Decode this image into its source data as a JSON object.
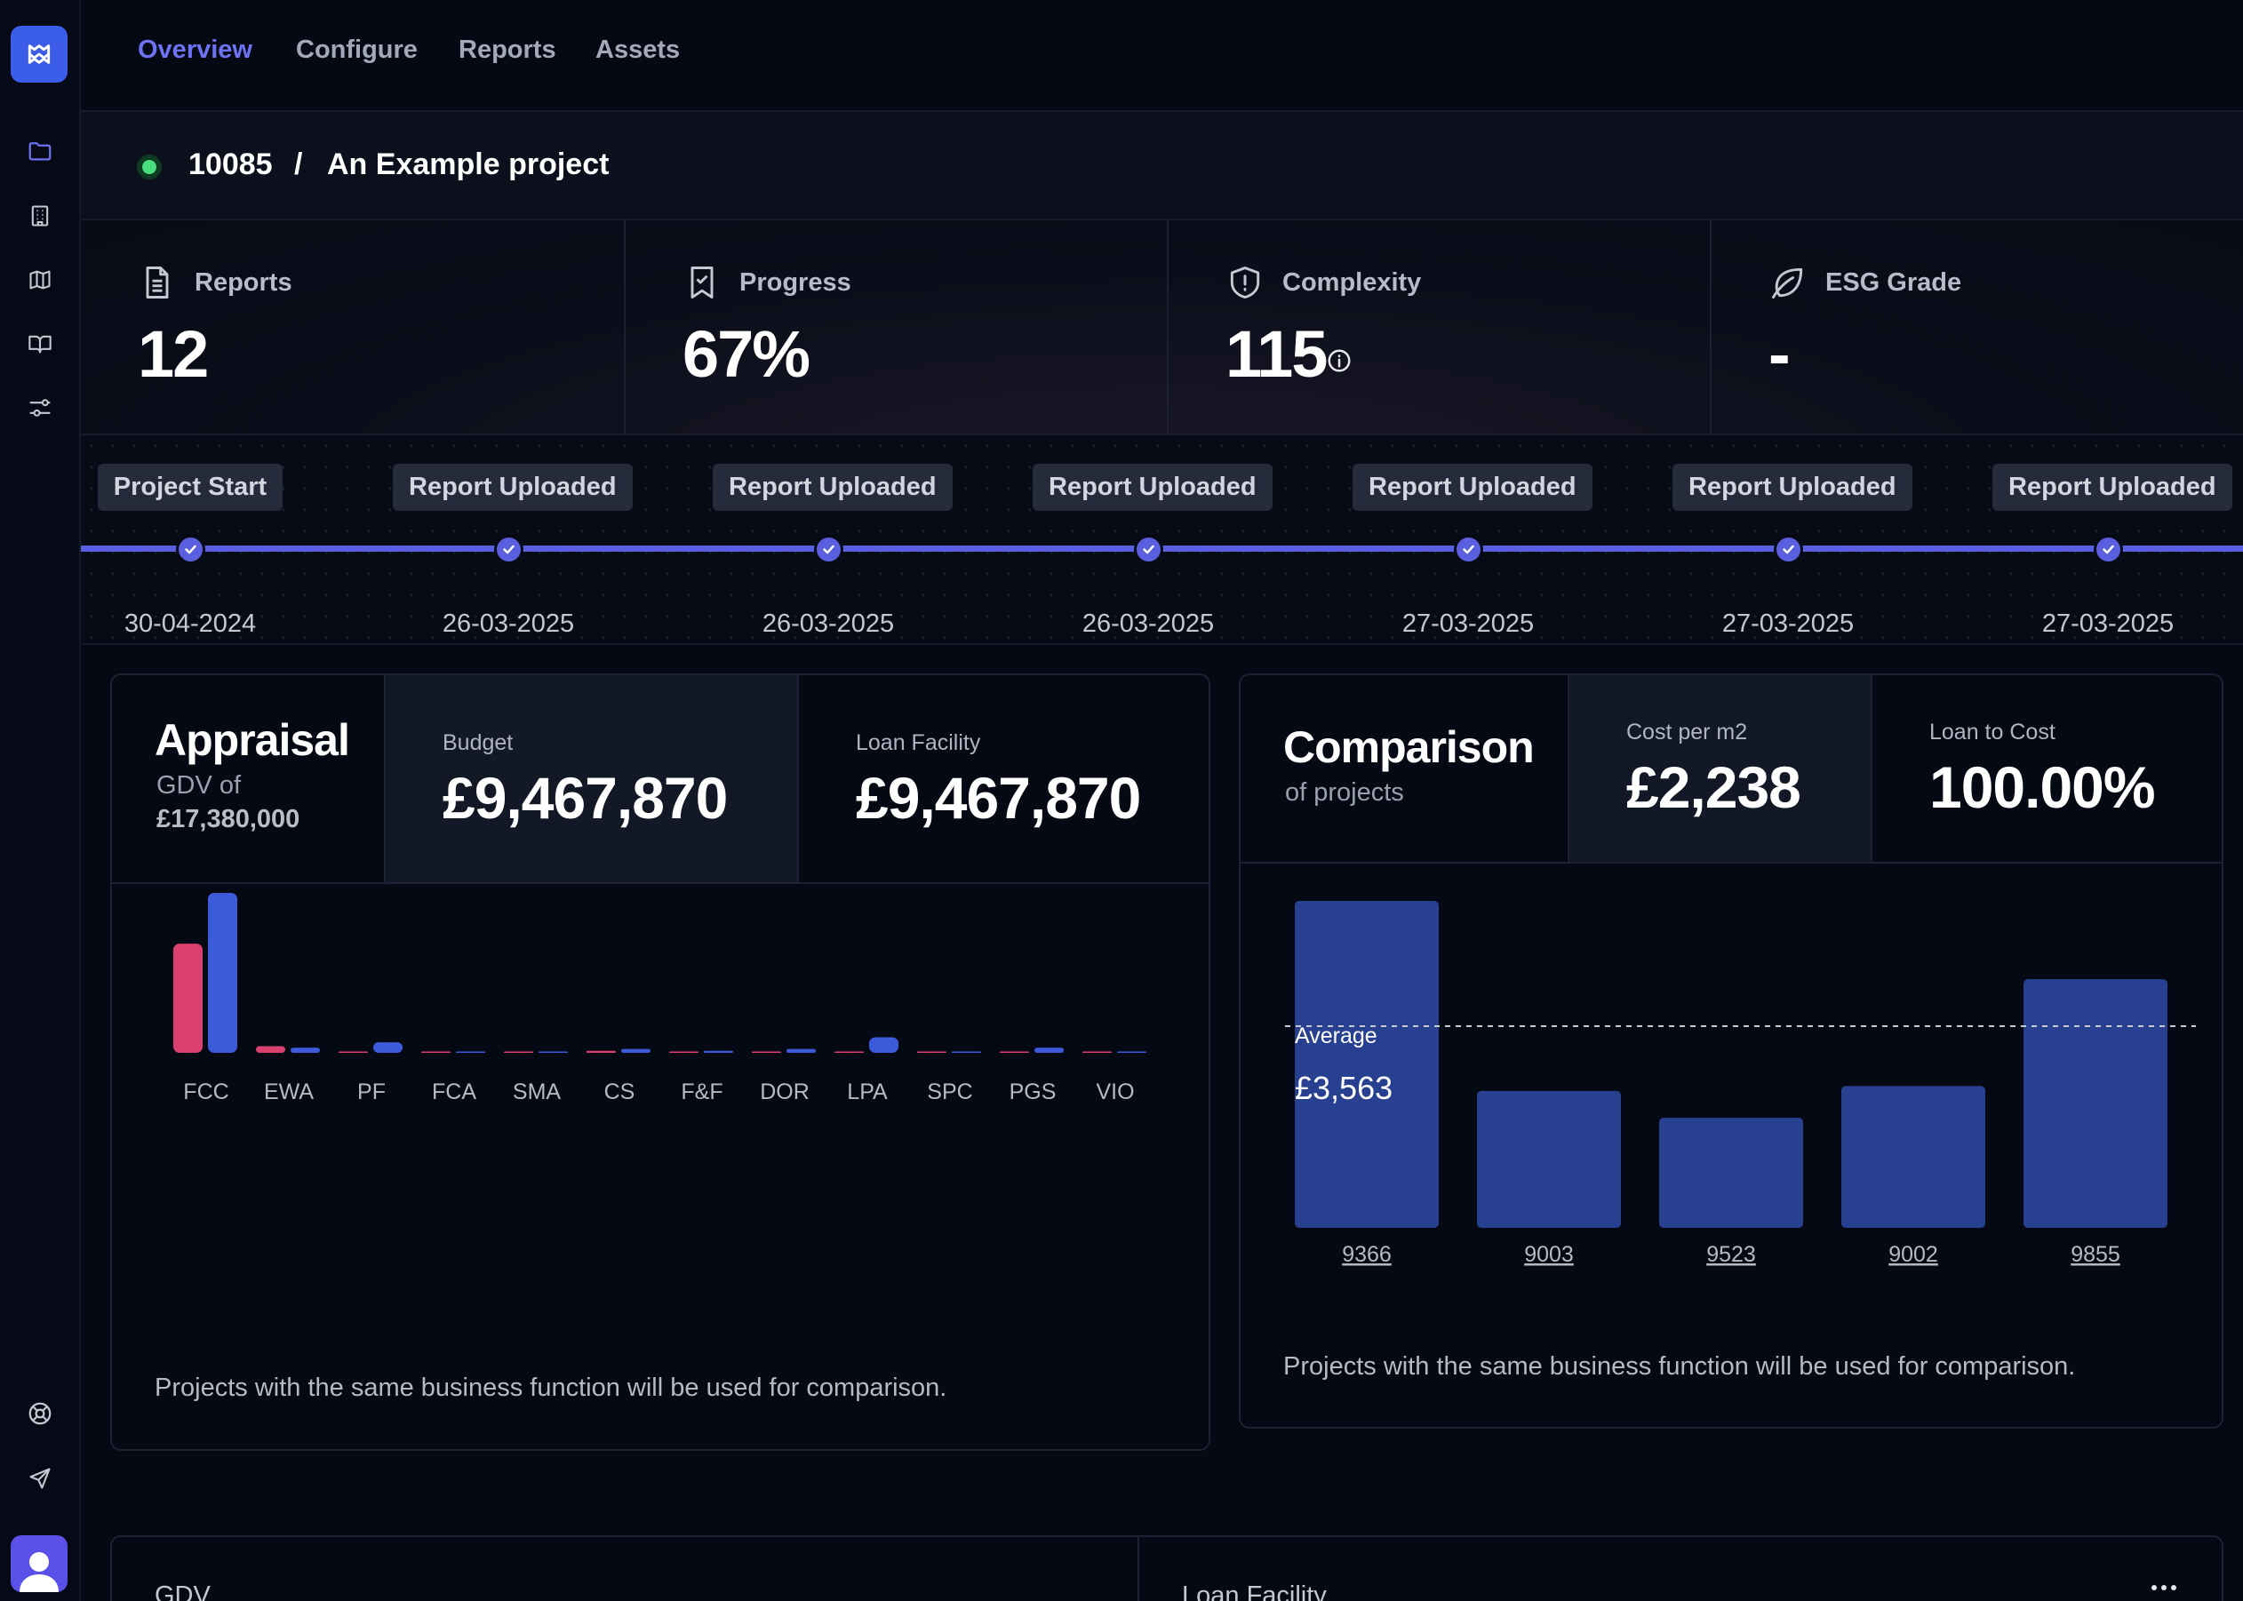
{
  "nav": {
    "items": [
      "Overview",
      "Configure",
      "Reports",
      "Assets"
    ],
    "active": "Overview"
  },
  "project": {
    "id": "10085",
    "separator": "/",
    "name": "An Example project",
    "status_color": "#4ade80"
  },
  "stats": [
    {
      "label": "Reports",
      "value": "12",
      "icon": "document-icon"
    },
    {
      "label": "Progress",
      "value": "67%",
      "icon": "bookmark-check-icon"
    },
    {
      "label": "Complexity",
      "value": "115",
      "icon": "shield-alert-icon"
    },
    {
      "label": "ESG Grade",
      "value": "-",
      "icon": "leaf-icon"
    }
  ],
  "timeline": [
    {
      "label": "Project Start",
      "date": "30-04-2024"
    },
    {
      "label": "Report Uploaded",
      "date": "26-03-2025"
    },
    {
      "label": "Report Uploaded",
      "date": "26-03-2025"
    },
    {
      "label": "Report Uploaded",
      "date": "26-03-2025"
    },
    {
      "label": "Report Uploaded",
      "date": "27-03-2025"
    },
    {
      "label": "Report Uploaded",
      "date": "27-03-2025"
    },
    {
      "label": "Report Uploaded",
      "date": "27-03-2025"
    }
  ],
  "appraisal": {
    "title": "Appraisal",
    "subtitle": "GDV of",
    "gdv": "£17,380,000",
    "budget_label": "Budget",
    "budget_value": "£9,467,870",
    "loan_label": "Loan Facility",
    "loan_value": "£9,467,870",
    "note": "Projects with the same business function will be used for comparison."
  },
  "comparison": {
    "title": "Comparison",
    "subtitle": "of projects",
    "cost_label": "Cost per m2",
    "cost_value": "£2,238",
    "ltc_label": "Loan to Cost",
    "ltc_value": "100.00%",
    "average_label": "Average",
    "average_value": "£3,563",
    "note": "Projects with the same business function will be used for comparison."
  },
  "bottom": {
    "left_title": "GDV",
    "right_title": "Loan Facility"
  },
  "colors": {
    "accent": "#6d73f2",
    "pink": "#d9406e",
    "blue": "#3b5bdb",
    "bar_blue": "#27408f"
  },
  "chart_data": [
    {
      "type": "bar",
      "categories": [
        "FCC",
        "EWA",
        "PF",
        "FCA",
        "SMA",
        "CS",
        "F&F",
        "DOR",
        "LPA",
        "SPC",
        "PGS",
        "VIO"
      ],
      "series": [
        {
          "color": "#d9406e",
          "values": [
            2.8,
            0.17,
            0.03,
            0.01,
            0,
            0.05,
            0,
            0,
            0,
            0.01,
            0.01,
            0
          ]
        },
        {
          "color": "#3b5bdb",
          "values": [
            4.1,
            0.13,
            0.27,
            0.02,
            0.01,
            0.1,
            0.05,
            0.1,
            0.4,
            0.01,
            0.13,
            0
          ]
        }
      ],
      "xlabel": "",
      "ylabel": "",
      "ylim": [
        0,
        4.1
      ],
      "grid": false
    },
    {
      "type": "bar",
      "categories": [
        "9366",
        "9003",
        "9523",
        "9002",
        "9855"
      ],
      "values": [
        4010,
        1680,
        1350,
        1740,
        3050
      ],
      "average": 3563,
      "ylim": [
        0,
        4010
      ],
      "xlabel": "",
      "ylabel": "",
      "grid": false
    }
  ]
}
